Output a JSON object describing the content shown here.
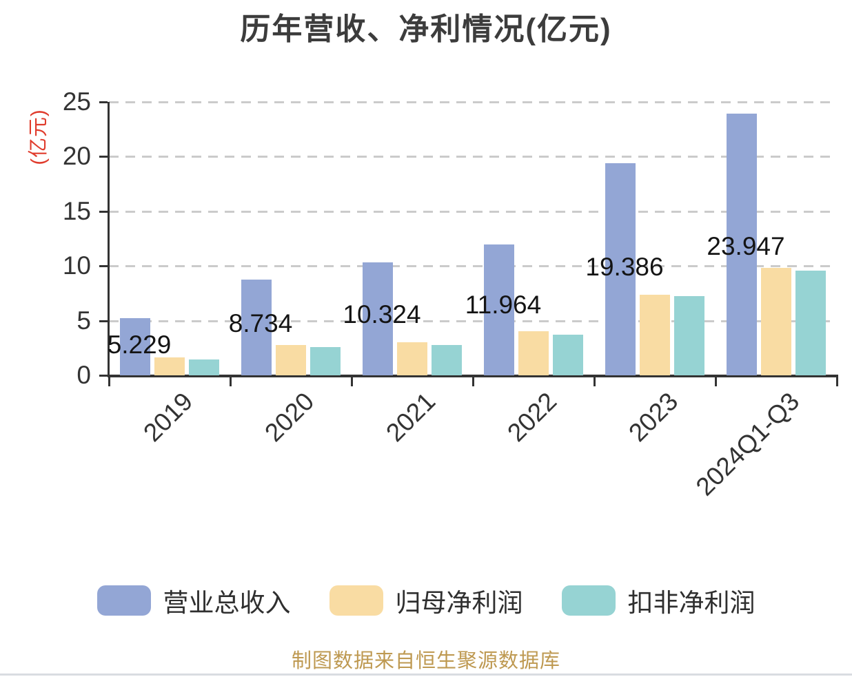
{
  "chart_data": {
    "type": "bar",
    "title": "历年营收、净利情况(亿元)",
    "y_axis_name": "(亿元)",
    "y_axis_name_color": "#E03C2D",
    "categories": [
      "2019",
      "2020",
      "2021",
      "2022",
      "2023",
      "2024Q1-Q3"
    ],
    "y_ticks": [
      0,
      5,
      10,
      15,
      20,
      25
    ],
    "ylim": [
      0,
      25
    ],
    "grid": "horizontal-dashed",
    "legend_position": "bottom",
    "series": [
      {
        "key": "total-revenue",
        "name": "营业总收入",
        "color": "#93A6D5",
        "values": [
          5.229,
          8.734,
          10.324,
          11.964,
          19.386,
          23.947
        ],
        "labels": [
          "5.229",
          "8.734",
          "10.324",
          "11.964",
          "19.386",
          "23.947"
        ]
      },
      {
        "key": "net-profit",
        "name": "归母净利润",
        "color": "#F9DCA3",
        "values": [
          1.65,
          2.8,
          3.05,
          4.0,
          7.35,
          9.85
        ]
      },
      {
        "key": "deducted-net-profit",
        "name": "扣非净利润",
        "color": "#96D3D3",
        "values": [
          1.45,
          2.6,
          2.75,
          3.7,
          7.25,
          9.55
        ]
      }
    ]
  },
  "footer": {
    "text": "制图数据来自恒生聚源数据库",
    "color": "#BE9951"
  }
}
